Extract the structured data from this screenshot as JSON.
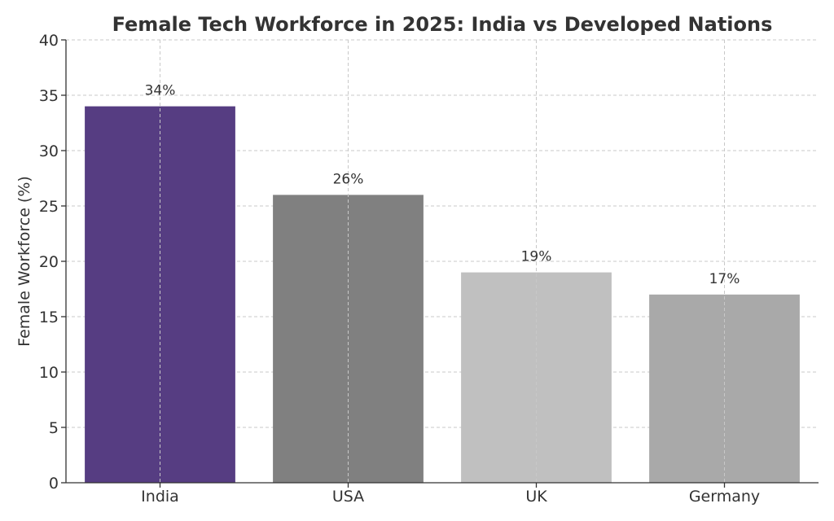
{
  "chart_data": {
    "type": "bar",
    "title": "Female Tech Workforce in 2025: India vs Developed Nations",
    "xlabel": "",
    "ylabel": "Female Workforce (%)",
    "categories": [
      "India",
      "USA",
      "UK",
      "Germany"
    ],
    "values": [
      34,
      26,
      19,
      17
    ],
    "value_labels": [
      "34%",
      "26%",
      "19%",
      "17%"
    ],
    "bar_colors": [
      "#563d82",
      "#808080",
      "#c0c0c0",
      "#a9a9a9"
    ],
    "ylim": [
      0,
      40
    ],
    "yticks": [
      0,
      5,
      10,
      15,
      20,
      25,
      30,
      35,
      40
    ],
    "ytick_labels": [
      "0",
      "5",
      "10",
      "15",
      "20",
      "25",
      "30",
      "35",
      "40"
    ],
    "grid": true,
    "grid_style": "dashed",
    "legend": "none"
  }
}
